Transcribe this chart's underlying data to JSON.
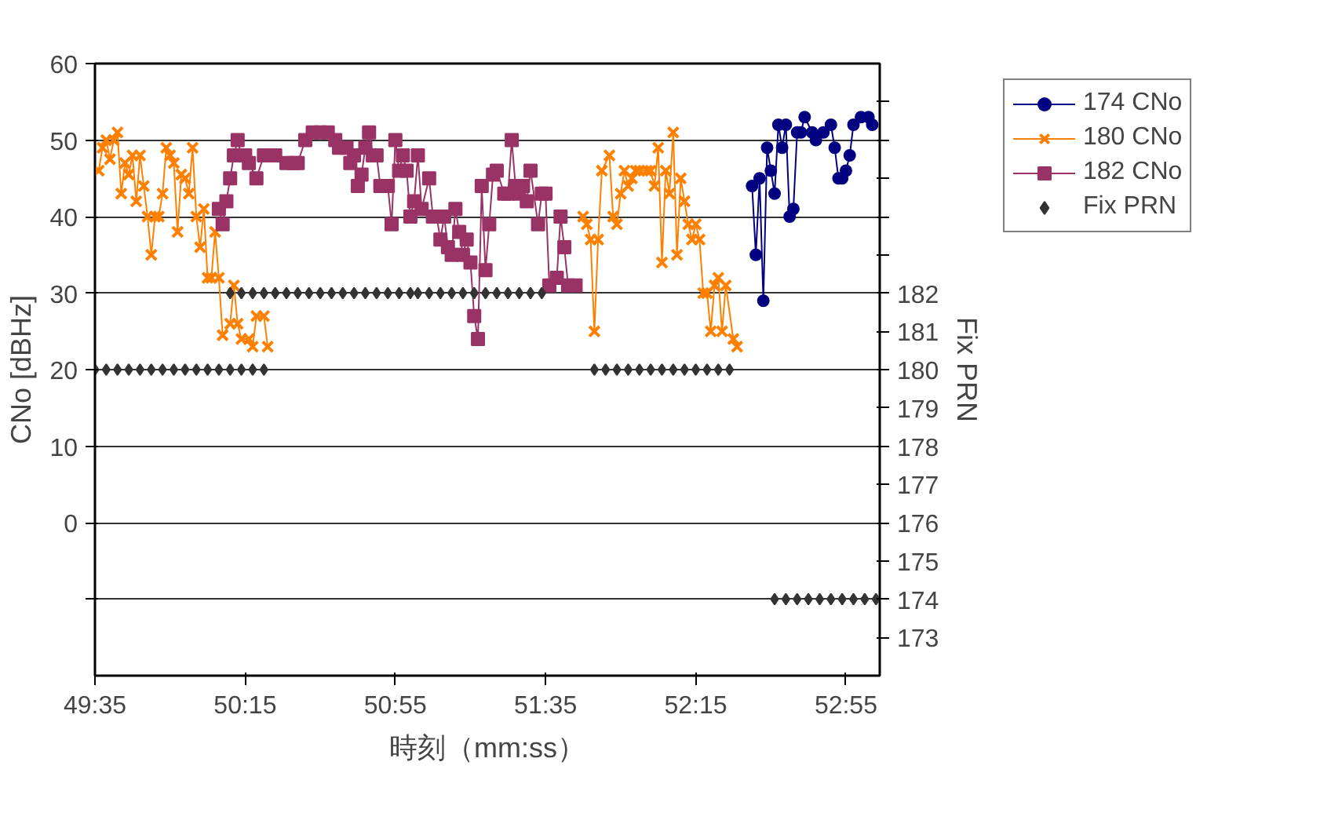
{
  "chart_data": {
    "type": "line",
    "xlabel": "時刻（mm:ss）",
    "ylabel": "CNo [dBHz]",
    "y2label": "Fix PRN",
    "xlim": [
      2975,
      3184
    ],
    "xticks": [
      {
        "value": 2975,
        "label": "49:35"
      },
      {
        "value": 3015,
        "label": "50:15"
      },
      {
        "value": 3055,
        "label": "50:55"
      },
      {
        "value": 3095,
        "label": "51:35"
      },
      {
        "value": 3135,
        "label": "52:15"
      },
      {
        "value": 3175,
        "label": "52:55"
      }
    ],
    "ylim": [
      -20,
      60
    ],
    "yticks": [
      {
        "value": -10,
        "label": null
      },
      0,
      10,
      20,
      30,
      40,
      50,
      60
    ],
    "y2lim": [
      172,
      188
    ],
    "y2ticks": [
      173,
      174,
      175,
      176,
      177,
      178,
      179,
      180,
      181,
      182,
      {
        "value": 183,
        "label": null
      },
      {
        "value": 184,
        "label": null
      },
      {
        "value": 185,
        "label": null
      },
      {
        "value": 186,
        "label": null
      },
      {
        "value": 187,
        "label": null
      }
    ],
    "grid": "y",
    "legend": "top right",
    "series": [
      {
        "name": "174 CNo",
        "color": "#000080",
        "marker": "circle",
        "x": [
          3150,
          3151,
          3152,
          3153,
          3154,
          3155,
          3156,
          3157,
          3158,
          3159,
          3160,
          3161,
          3162,
          3163,
          3164,
          3166,
          3167,
          3169,
          3171,
          3172,
          3173,
          3174,
          3175,
          3176,
          3177,
          3179,
          3181,
          3182
        ],
        "values": [
          44,
          35,
          45,
          29,
          49,
          46,
          43,
          52,
          49,
          52,
          40,
          41,
          51,
          51,
          53,
          51,
          50,
          51,
          52,
          49,
          45,
          45,
          46,
          48,
          52,
          53,
          53,
          52
        ]
      },
      {
        "name": "180 CNo",
        "color": "#ff8000",
        "marker": "cross",
        "x": [
          2976,
          2977,
          2978,
          2979,
          2980,
          2981,
          2982,
          2983,
          2984,
          2985,
          2986,
          2987,
          2988,
          2989,
          2990,
          2991,
          2992,
          2993,
          2994,
          2995,
          2996,
          2997,
          2998,
          2999,
          3000,
          3001,
          3002,
          3003,
          3004,
          3005,
          3006,
          3007,
          3008,
          3009,
          3011,
          3012,
          3013,
          3014,
          3016,
          3017,
          3018,
          3020,
          3021,
          null,
          3105,
          3106,
          3107,
          3108,
          3109,
          3110,
          3112,
          3113,
          3114,
          3115,
          3116,
          3117,
          3118,
          3119,
          3120,
          3122,
          3123,
          3124,
          3125,
          3126,
          3127,
          3128,
          3129,
          3130,
          3131,
          3132,
          3133,
          3134,
          3135,
          3136,
          3137,
          3138,
          3139,
          3140,
          3141,
          3142,
          3143,
          3145,
          3146
        ],
        "values": [
          46,
          49,
          50,
          47.5,
          50,
          51,
          43,
          47,
          45.5,
          48,
          42,
          48,
          44,
          40,
          35,
          40,
          40,
          43,
          49,
          48,
          47,
          38,
          45.5,
          45,
          43,
          49,
          40,
          36,
          41,
          32,
          32,
          38,
          32,
          24.5,
          26,
          31,
          26,
          24,
          24,
          23,
          27,
          27,
          23,
          null,
          40,
          39,
          37,
          25,
          37,
          46,
          48,
          40,
          39,
          43,
          46,
          44,
          45,
          46,
          46,
          46,
          46,
          44,
          49,
          34,
          46,
          43,
          51,
          35,
          45,
          42,
          39,
          37,
          39,
          37,
          30,
          30,
          25,
          31,
          32,
          25,
          31,
          24,
          23
        ]
      },
      {
        "name": "182 CNo",
        "color": "#993366",
        "marker": "square",
        "x": [
          3008,
          3009,
          3010,
          3011,
          3012,
          3013,
          3014,
          3015,
          3016,
          3018,
          3020,
          3021,
          3023,
          3026,
          3028,
          3029,
          3031,
          3033,
          3035,
          3037,
          3039,
          3040,
          3042,
          3043,
          3044,
          3045,
          3046,
          3047,
          3048,
          3049,
          3050,
          3051,
          3053,
          3054,
          3055,
          3056,
          3057,
          3058,
          3059,
          3060,
          3061,
          3062,
          3064,
          3065,
          3066,
          3067,
          3068,
          3069,
          3070,
          3071,
          3072,
          3073,
          3074,
          3075,
          3076,
          3077,
          3078,
          3079,
          3080,
          3081,
          3082,
          3084,
          3085,
          3086,
          3087,
          3088,
          3089,
          3090,
          3091,
          3093,
          3094,
          3095,
          3096,
          3098,
          3099,
          3100,
          3101,
          3103
        ],
        "values": [
          41,
          39,
          42,
          45,
          48,
          50,
          48,
          48,
          47,
          45,
          48,
          48,
          48,
          47,
          47,
          47,
          50,
          51,
          51,
          51,
          50,
          49,
          49,
          47,
          48,
          44,
          45.5,
          49,
          51,
          48,
          48,
          44,
          44,
          39,
          50,
          46,
          48,
          46,
          40,
          42,
          48,
          41,
          45,
          40,
          40,
          37,
          40,
          36,
          35,
          41,
          38,
          35,
          37,
          34,
          27,
          24,
          44,
          33,
          39,
          45.5,
          46,
          43,
          43,
          50,
          44,
          43,
          44,
          42,
          46,
          39,
          43,
          43,
          31,
          32,
          40,
          36,
          31,
          31
        ]
      },
      {
        "name": "Fix PRN",
        "type": "scatter",
        "axis": "y2",
        "color": "#333333",
        "marker": "diamond",
        "x": [
          2975,
          2978,
          2981,
          2984,
          2987,
          2990,
          2993,
          2996,
          2999,
          3002,
          3005,
          3008,
          3011,
          3014,
          3017,
          3020,
          3011,
          3014,
          3017,
          3020,
          3023,
          3026,
          3029,
          3032,
          3035,
          3038,
          3041,
          3044,
          3047,
          3050,
          3053,
          3056,
          3059,
          3061,
          3064,
          3067,
          3070,
          3073,
          3076,
          3079,
          3082,
          3085,
          3088,
          3091,
          3094,
          3108,
          3111,
          3114,
          3117,
          3120,
          3123,
          3126,
          3129,
          3132,
          3135,
          3138,
          3141,
          3144,
          3156,
          3159,
          3162,
          3165,
          3168,
          3171,
          3174,
          3177,
          3180,
          3183
        ],
        "values": [
          180,
          180,
          180,
          180,
          180,
          180,
          180,
          180,
          180,
          180,
          180,
          180,
          180,
          180,
          180,
          180,
          182,
          182,
          182,
          182,
          182,
          182,
          182,
          182,
          182,
          182,
          182,
          182,
          182,
          182,
          182,
          182,
          182,
          182,
          182,
          182,
          182,
          182,
          182,
          182,
          182,
          182,
          182,
          182,
          182,
          180,
          180,
          180,
          180,
          180,
          180,
          180,
          180,
          180,
          180,
          180,
          180,
          180,
          174,
          174,
          174,
          174,
          174,
          174,
          174,
          174,
          174,
          174
        ]
      }
    ]
  }
}
